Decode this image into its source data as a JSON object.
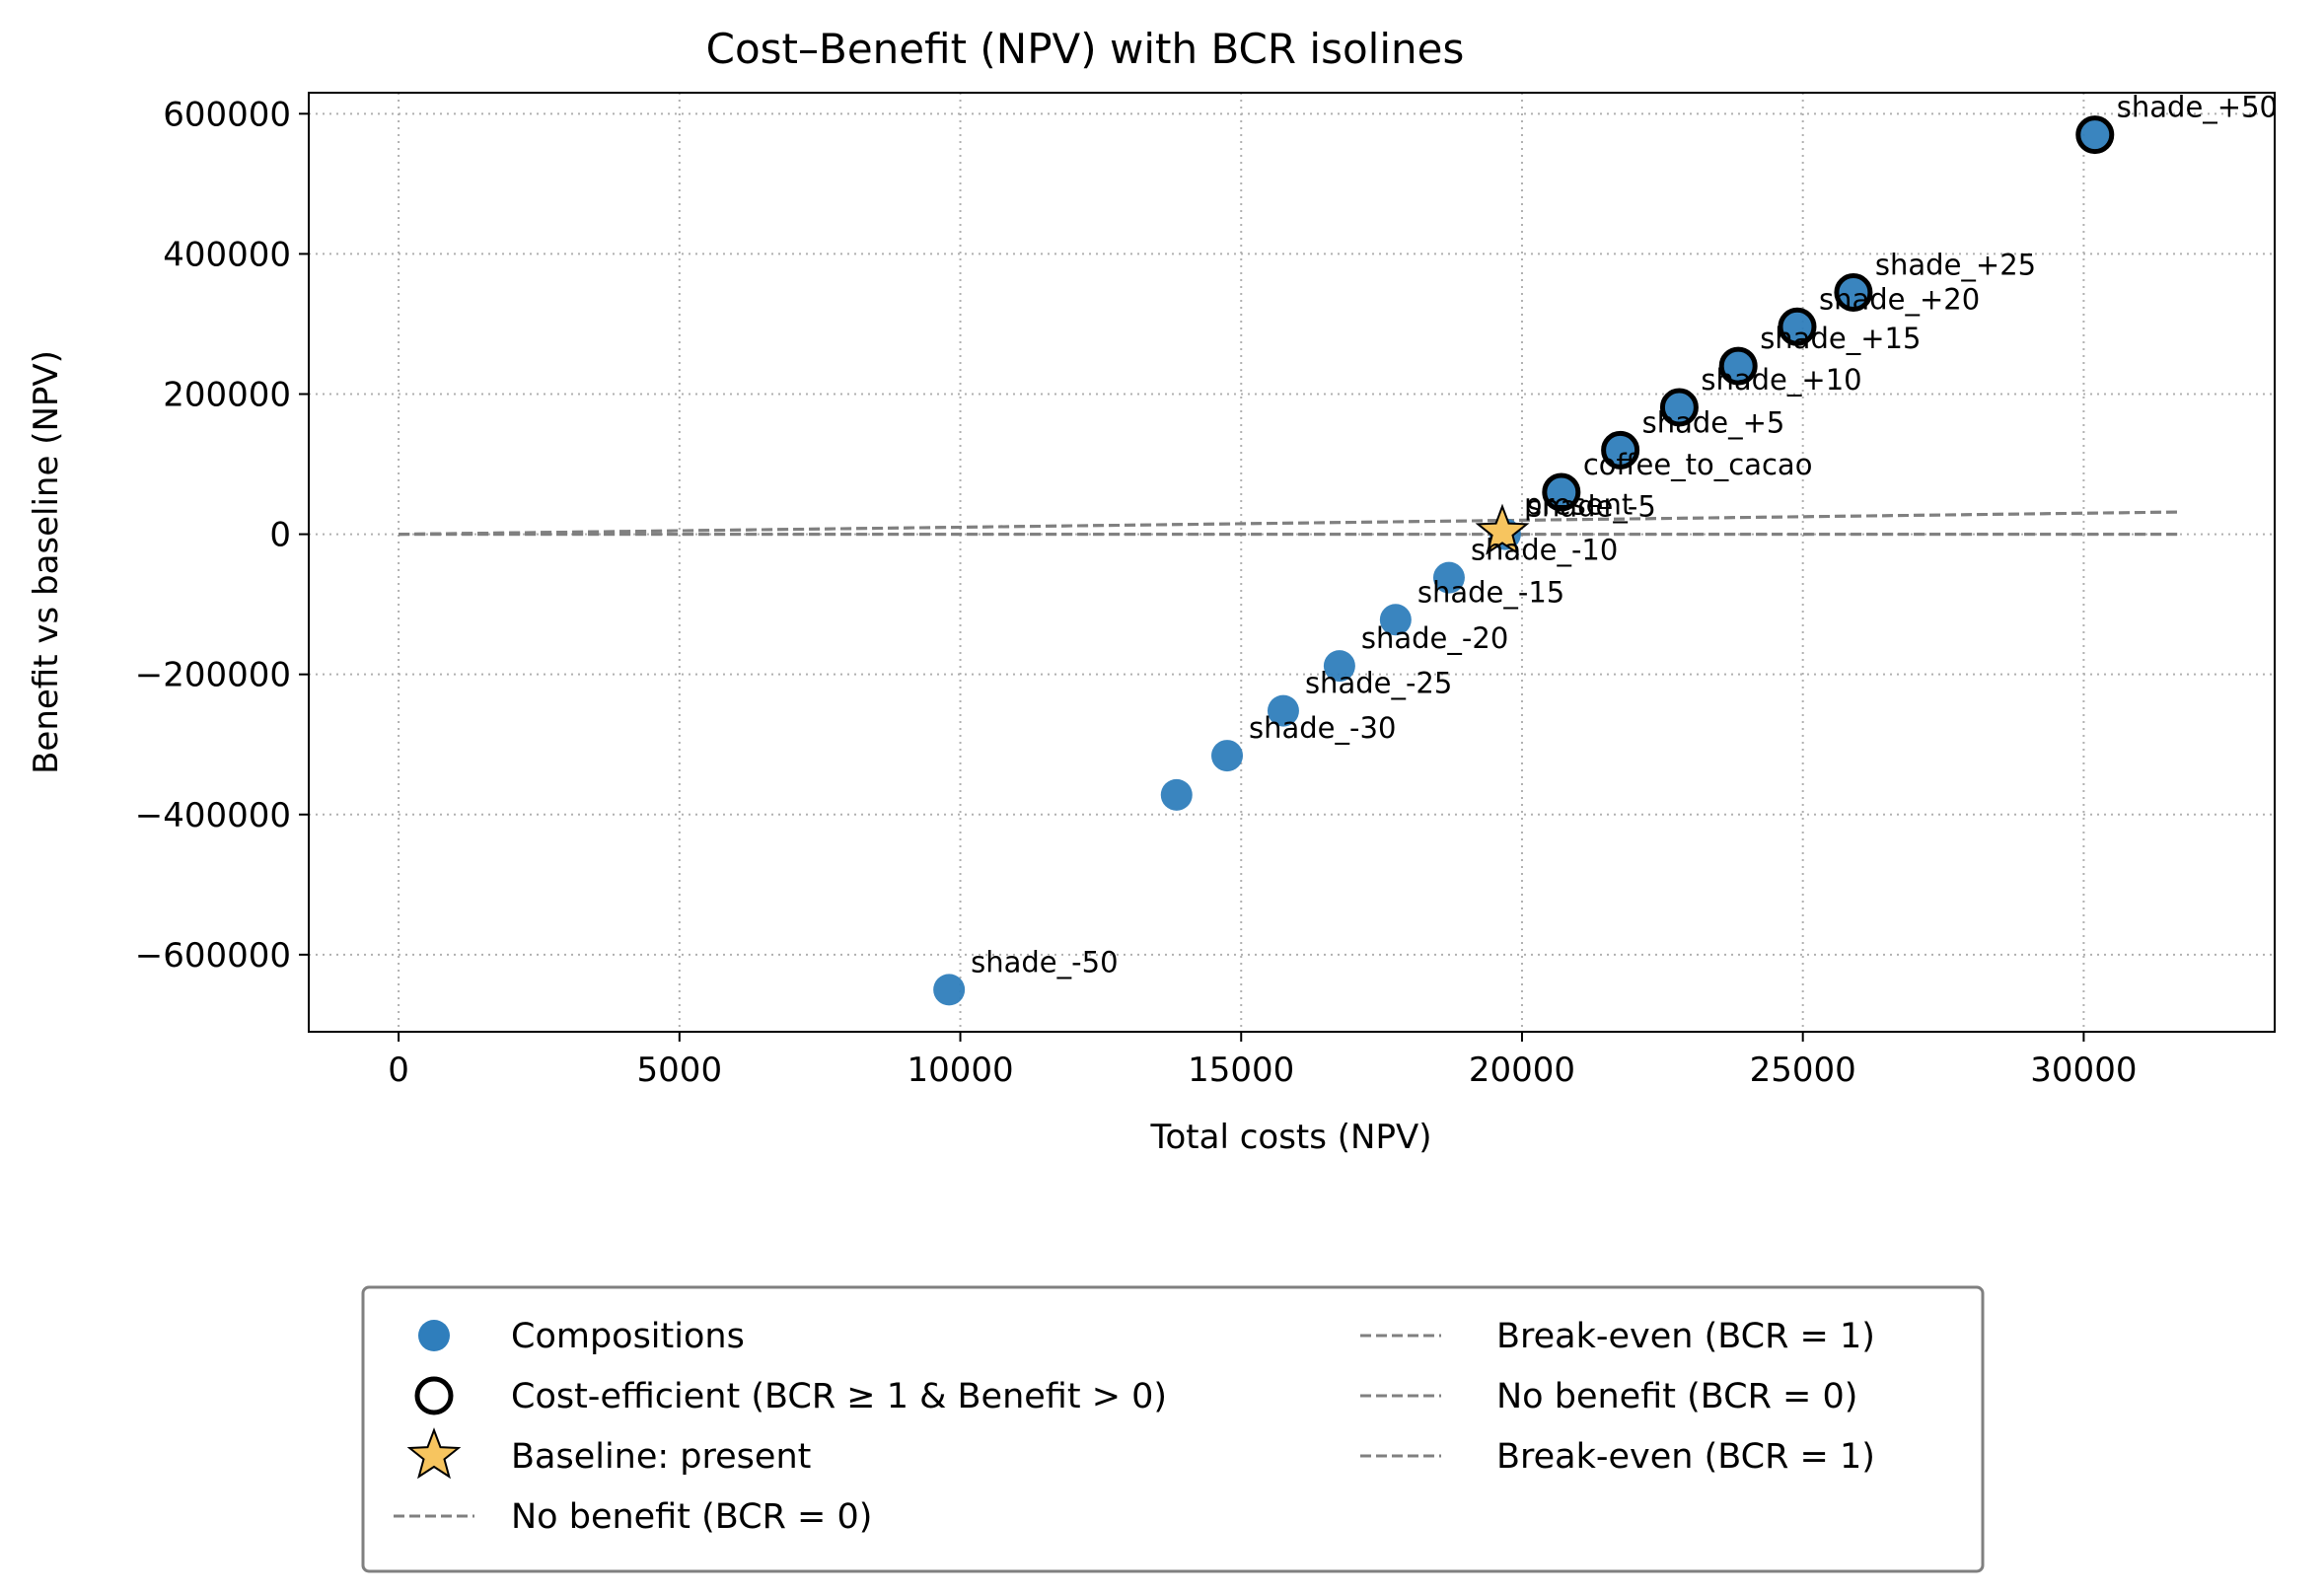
{
  "chart_data": {
    "type": "scatter",
    "title": "Cost–Benefit (NPV) with BCR isolines",
    "xlabel": "Total costs (NPV)",
    "ylabel": "Benefit vs baseline (NPV)",
    "xlim": [
      -1600,
      33400
    ],
    "ylim": [
      -710000,
      630000
    ],
    "x_ticks": [
      0,
      5000,
      10000,
      15000,
      20000,
      25000,
      30000
    ],
    "y_ticks": [
      -600000,
      -400000,
      -200000,
      0,
      200000,
      400000,
      600000
    ],
    "y_tick_labels": [
      "−600000",
      "−400000",
      "−200000",
      "0",
      "200000",
      "400000",
      "600000"
    ],
    "x_tick_labels": [
      "0",
      "5000",
      "10000",
      "15000",
      "20000",
      "25000",
      "30000"
    ],
    "grid": true,
    "series": [
      {
        "name": "Compositions",
        "color": "#2f7ebc",
        "points": [
          {
            "label": "shade_-50",
            "x": 9800,
            "y": -650000
          },
          {
            "label": "",
            "x": 13850,
            "y": -372000
          },
          {
            "label": "shade_-30",
            "x": 14750,
            "y": -316000
          },
          {
            "label": "shade_-25",
            "x": 15750,
            "y": -252000
          },
          {
            "label": "shade_-20",
            "x": 16750,
            "y": -188000
          },
          {
            "label": "shade_-15",
            "x": 17750,
            "y": -122000
          },
          {
            "label": "shade_-10",
            "x": 18700,
            "y": -62000
          },
          {
            "label": "shade_-5",
            "x": 19700,
            "y": 0
          },
          {
            "label": "coffee_to_cacao",
            "x": 20700,
            "y": 60000
          },
          {
            "label": "shade_+5",
            "x": 21750,
            "y": 120000
          },
          {
            "label": "shade_+10",
            "x": 22800,
            "y": 181000
          },
          {
            "label": "shade_+15",
            "x": 23850,
            "y": 240000
          },
          {
            "label": "shade_+20",
            "x": 24900,
            "y": 296000
          },
          {
            "label": "shade_+25",
            "x": 25900,
            "y": 345000
          },
          {
            "label": "shade_+50",
            "x": 30200,
            "y": 570000
          }
        ]
      },
      {
        "name": "Cost-efficient (BCR ≥ 1 & Benefit > 0)",
        "color": "#000000",
        "points": [
          {
            "x": 20700,
            "y": 60000
          },
          {
            "x": 21750,
            "y": 120000
          },
          {
            "x": 22800,
            "y": 181000
          },
          {
            "x": 23850,
            "y": 240000
          },
          {
            "x": 24900,
            "y": 296000
          },
          {
            "x": 25900,
            "y": 345000
          },
          {
            "x": 30200,
            "y": 570000
          }
        ]
      },
      {
        "name": "Baseline: present",
        "color": "#f7c55f",
        "points": [
          {
            "label": "present",
            "x": 19650,
            "y": 3000
          }
        ]
      }
    ],
    "annotation_offsets_note": "",
    "lines": [
      {
        "name": "Break-even (BCR = 1)",
        "x": [
          0,
          31700
        ],
        "y": [
          0,
          31700
        ],
        "color": "#808080",
        "style": "dashed"
      },
      {
        "name": "No benefit (BCR = 0)",
        "x": [
          0,
          31700
        ],
        "y": [
          0,
          0
        ],
        "color": "#808080",
        "style": "dashed"
      },
      {
        "name": "Break-even (BCR = 1)",
        "x": [
          0,
          31700
        ],
        "y": [
          0,
          31700
        ],
        "color": "#808080",
        "style": "dashed"
      },
      {
        "name": "No benefit (BCR = 0)",
        "x": [
          0,
          31700
        ],
        "y": [
          0,
          0
        ],
        "color": "#808080",
        "style": "dashed"
      }
    ],
    "legend": {
      "placement": "below",
      "entries": [
        {
          "label": "Compositions",
          "kind": "dot"
        },
        {
          "label": "Cost-efficient (BCR ≥ 1 & Benefit > 0)",
          "kind": "ring"
        },
        {
          "label": "Baseline: present",
          "kind": "star"
        },
        {
          "label": "No benefit (BCR = 0)",
          "kind": "dash"
        },
        {
          "label": "Break-even (BCR = 1)",
          "kind": "dash"
        },
        {
          "label": "No benefit (BCR = 0)",
          "kind": "dash"
        },
        {
          "label": "Break-even (BCR = 1)",
          "kind": "dash"
        }
      ]
    }
  }
}
